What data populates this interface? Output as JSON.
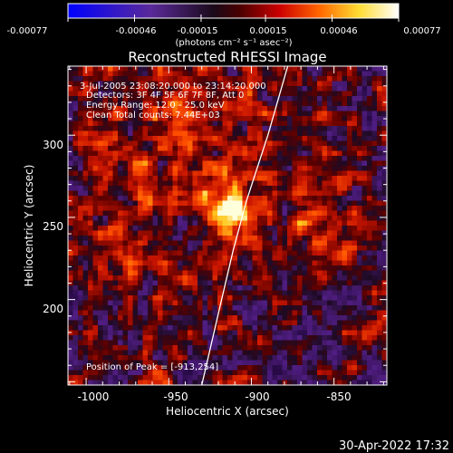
{
  "colorbar": {
    "tick_labels": [
      "-0.00077",
      "-0.00046",
      "-0.00015",
      "0.00015",
      "0.00046",
      "0.00077"
    ],
    "tick_values": [
      -0.00077,
      -0.00046,
      -0.00015,
      0.00015,
      0.00046,
      0.00077
    ],
    "units_label": "(photons cm⁻² s⁻¹ asec⁻²)",
    "colormap": [
      "#0000ff",
      "#4a1a8c",
      "#000000",
      "#8b0000",
      "#ff0000",
      "#ff8c00",
      "#ffff66",
      "#ffffff"
    ]
  },
  "plot": {
    "title": "Reconstructed RHESSI Image",
    "info_lines": [
      "3-Jul-2005 23:08:20.000 to 23:14:20.000",
      "Detectors: 3F 4F 5F 6F 7F 8F, Att 0",
      "Energy Range: 12.0 - 25.0 keV",
      "Clean     Total counts: 7.44E+03"
    ],
    "peak_label": "Position of Peak = [-913,254]",
    "xlabel": "Heliocentric X (arcsec)",
    "ylabel": "Heliocentric Y (arcsec)",
    "x_ticks": [
      "-1000",
      "-950",
      "-900",
      "-850"
    ],
    "y_ticks": [
      "200",
      "250",
      "300"
    ]
  },
  "chart_data": {
    "type": "heatmap",
    "title": "Reconstructed RHESSI Image",
    "xlabel": "Heliocentric X (arcsec)",
    "ylabel": "Heliocentric Y (arcsec)",
    "xlim": [
      -1011,
      -818
    ],
    "ylim": [
      148,
      342
    ],
    "x_ticks": [
      -1000,
      -950,
      -900,
      -850
    ],
    "y_ticks": [
      200,
      250,
      300
    ],
    "value_range": [
      -0.00077,
      0.00077
    ],
    "peak": {
      "x": -913,
      "y": 254
    },
    "limb_points": [
      [
        -930,
        148
      ],
      [
        -918,
        200
      ],
      [
        -911,
        230
      ],
      [
        -903,
        260
      ],
      [
        -890,
        300
      ],
      [
        -878,
        342
      ]
    ]
  },
  "footer": {
    "timestamp": "30-Apr-2022 17:32"
  }
}
